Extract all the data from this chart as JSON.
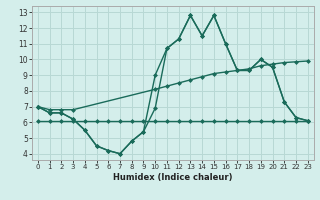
{
  "xlabel": "Humidex (Indice chaleur)",
  "bg_color": "#d4eeeb",
  "grid_color": "#b8d8d4",
  "line_color": "#1a6b5a",
  "xlim_min": -0.5,
  "xlim_max": 23.5,
  "ylim_min": 3.6,
  "ylim_max": 13.4,
  "xticks": [
    0,
    1,
    2,
    3,
    4,
    5,
    6,
    7,
    8,
    9,
    10,
    11,
    12,
    13,
    14,
    15,
    16,
    17,
    18,
    19,
    20,
    21,
    22,
    23
  ],
  "yticks": [
    4,
    5,
    6,
    7,
    8,
    9,
    10,
    11,
    12,
    13
  ],
  "line1_x": [
    0,
    1,
    2,
    3,
    4,
    5,
    6,
    7,
    8,
    9,
    10,
    11,
    12,
    13,
    14,
    15,
    16,
    17,
    18,
    19,
    20,
    21,
    22,
    23
  ],
  "line1_y": [
    7.0,
    6.6,
    6.6,
    6.2,
    5.5,
    4.5,
    4.2,
    4.0,
    4.8,
    5.4,
    6.9,
    10.7,
    11.3,
    12.8,
    11.5,
    12.8,
    11.0,
    9.3,
    9.3,
    10.0,
    9.5,
    7.3,
    6.3,
    6.1
  ],
  "line2_x": [
    0,
    1,
    2,
    3,
    4,
    5,
    6,
    7,
    8,
    9,
    10,
    11,
    12,
    13,
    14,
    15,
    16,
    17,
    18,
    19,
    20,
    21,
    22,
    23
  ],
  "line2_y": [
    7.0,
    6.6,
    6.6,
    6.2,
    5.5,
    4.5,
    4.2,
    4.0,
    4.8,
    5.4,
    9.0,
    10.7,
    11.3,
    12.8,
    11.5,
    12.8,
    11.0,
    9.3,
    9.3,
    10.0,
    9.5,
    7.3,
    6.3,
    6.1
  ],
  "line3_x": [
    0,
    1,
    2,
    3,
    10,
    11,
    12,
    13,
    14,
    15,
    16,
    17,
    18,
    19,
    20,
    21,
    22,
    23
  ],
  "line3_y": [
    7.0,
    6.8,
    6.8,
    6.8,
    8.1,
    8.3,
    8.5,
    8.7,
    8.9,
    9.1,
    9.2,
    9.3,
    9.4,
    9.6,
    9.7,
    9.8,
    9.85,
    9.9
  ],
  "line4_x": [
    0,
    1,
    2,
    3,
    4,
    5,
    6,
    7,
    8,
    9,
    10,
    11,
    12,
    13,
    14,
    15,
    16,
    17,
    18,
    19,
    20,
    21,
    22,
    23
  ],
  "line4_y": [
    6.1,
    6.1,
    6.1,
    6.1,
    6.1,
    6.1,
    6.1,
    6.1,
    6.1,
    6.1,
    6.1,
    6.1,
    6.1,
    6.1,
    6.1,
    6.1,
    6.1,
    6.1,
    6.1,
    6.1,
    6.1,
    6.1,
    6.1,
    6.1
  ]
}
